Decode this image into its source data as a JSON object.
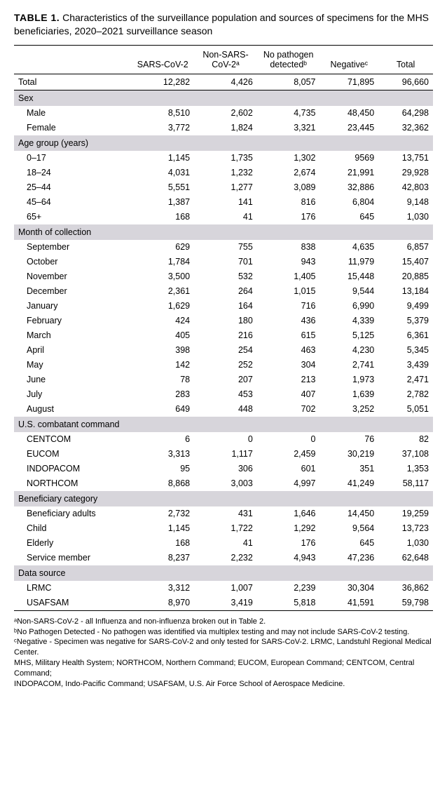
{
  "title_label": "TABLE 1.",
  "title_text": "Characteristics of the surveillance population and sources of specimens for the MHS beneficiaries, 2020–2021 surveillance season",
  "columns": [
    "",
    "SARS-CoV-2",
    "Non-SARS-CoV-2ᵃ",
    "No pathogen detectedᵇ",
    "Negativeᶜ",
    "Total"
  ],
  "total_row": {
    "label": "Total",
    "v": [
      "12,282",
      "4,426",
      "8,057",
      "71,895",
      "96,660"
    ]
  },
  "sections": [
    {
      "header": "Sex",
      "rows": [
        {
          "label": "Male",
          "v": [
            "8,510",
            "2,602",
            "4,735",
            "48,450",
            "64,298"
          ]
        },
        {
          "label": "Female",
          "v": [
            "3,772",
            "1,824",
            "3,321",
            "23,445",
            "32,362"
          ]
        }
      ]
    },
    {
      "header": "Age group (years)",
      "rows": [
        {
          "label": "0–17",
          "v": [
            "1,145",
            "1,735",
            "1,302",
            "9569",
            "13,751"
          ]
        },
        {
          "label": "18–24",
          "v": [
            "4,031",
            "1,232",
            "2,674",
            "21,991",
            "29,928"
          ]
        },
        {
          "label": "25–44",
          "v": [
            "5,551",
            "1,277",
            "3,089",
            "32,886",
            "42,803"
          ]
        },
        {
          "label": "45–64",
          "v": [
            "1,387",
            "141",
            "816",
            "6,804",
            "9,148"
          ]
        },
        {
          "label": "65+",
          "v": [
            "168",
            "41",
            "176",
            "645",
            "1,030"
          ]
        }
      ]
    },
    {
      "header": "Month of collection",
      "rows": [
        {
          "label": "September",
          "v": [
            "629",
            "755",
            "838",
            "4,635",
            "6,857"
          ]
        },
        {
          "label": "October",
          "v": [
            "1,784",
            "701",
            "943",
            "11,979",
            "15,407"
          ]
        },
        {
          "label": "November",
          "v": [
            "3,500",
            "532",
            "1,405",
            "15,448",
            "20,885"
          ]
        },
        {
          "label": "December",
          "v": [
            "2,361",
            "264",
            "1,015",
            "9,544",
            "13,184"
          ]
        },
        {
          "label": "January",
          "v": [
            "1,629",
            "164",
            "716",
            "6,990",
            "9,499"
          ]
        },
        {
          "label": "February",
          "v": [
            "424",
            "180",
            "436",
            "4,339",
            "5,379"
          ]
        },
        {
          "label": "March",
          "v": [
            "405",
            "216",
            "615",
            "5,125",
            "6,361"
          ]
        },
        {
          "label": "April",
          "v": [
            "398",
            "254",
            "463",
            "4,230",
            "5,345"
          ]
        },
        {
          "label": "May",
          "v": [
            "142",
            "252",
            "304",
            "2,741",
            "3,439"
          ]
        },
        {
          "label": "June",
          "v": [
            "78",
            "207",
            "213",
            "1,973",
            "2,471"
          ]
        },
        {
          "label": "July",
          "v": [
            "283",
            "453",
            "407",
            "1,639",
            "2,782"
          ]
        },
        {
          "label": "August",
          "v": [
            "649",
            "448",
            "702",
            "3,252",
            "5,051"
          ]
        }
      ]
    },
    {
      "header": "U.S. combatant command",
      "rows": [
        {
          "label": "CENTCOM",
          "v": [
            "6",
            "0",
            "0",
            "76",
            "82"
          ]
        },
        {
          "label": "EUCOM",
          "v": [
            "3,313",
            "1,117",
            "2,459",
            "30,219",
            "37,108"
          ]
        },
        {
          "label": "INDOPACOM",
          "v": [
            "95",
            "306",
            "601",
            "351",
            "1,353"
          ]
        },
        {
          "label": "NORTHCOM",
          "v": [
            "8,868",
            "3,003",
            "4,997",
            "41,249",
            "58,117"
          ]
        }
      ]
    },
    {
      "header": "Beneficiary category",
      "rows": [
        {
          "label": "Beneficiary adults",
          "v": [
            "2,732",
            "431",
            "1,646",
            "14,450",
            "19,259"
          ]
        },
        {
          "label": "Child",
          "v": [
            "1,145",
            "1,722",
            "1,292",
            "9,564",
            "13,723"
          ]
        },
        {
          "label": "Elderly",
          "v": [
            "168",
            "41",
            "176",
            "645",
            "1,030"
          ]
        },
        {
          "label": "Service member",
          "v": [
            "8,237",
            "2,232",
            "4,943",
            "47,236",
            "62,648"
          ]
        }
      ]
    },
    {
      "header": "Data source",
      "rows": [
        {
          "label": "LRMC",
          "v": [
            "3,312",
            "1,007",
            "2,239",
            "30,304",
            "36,862"
          ]
        },
        {
          "label": "USAFSAM",
          "v": [
            "8,970",
            "3,419",
            "5,818",
            "41,591",
            "59,798"
          ]
        }
      ]
    }
  ],
  "footnotes": [
    "ᵃNon-SARS-CoV-2 - all Influenza and non-influenza broken out in Table 2.",
    "ᵇNo Pathogen Detected - No pathogen was identified via multiplex testing and may not include SARS-CoV-2 testing.",
    "ᶜNegative -  Specimen was negative for SARS-CoV-2 and only tested for SARS-CoV-2. LRMC, Landstuhl Regional Medical Center.",
    "MHS, Military Health System; NORTHCOM, Northern Command; EUCOM, European Command; CENTCOM, Central Command;",
    "INDOPACOM, Indo-Pacific Command;  USAFSAM, U.S. Air Force School of Aerospace Medicine."
  ]
}
